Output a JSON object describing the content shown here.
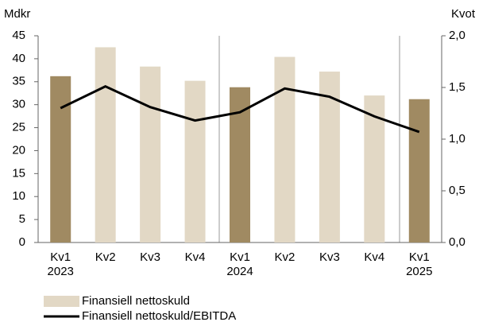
{
  "chart_data": {
    "type": "bar_line",
    "y_label": "Mdkr",
    "y2_label": "Kvot",
    "categories": [
      "Kv1\n2023",
      "Kv2",
      "Kv3",
      "Kv4",
      "Kv1\n2024",
      "Kv2",
      "Kv3",
      "Kv4",
      "Kv1\n2025"
    ],
    "series": [
      {
        "name": "Finansiell nettoskuld",
        "type": "bar",
        "color": "#e2d8c5",
        "colors": [
          "#a08a62",
          "#e2d8c5",
          "#e2d8c5",
          "#e2d8c5",
          "#a08a62",
          "#e2d8c5",
          "#e2d8c5",
          "#e2d8c5",
          "#a08a62"
        ],
        "values": [
          36.2,
          42.5,
          38.3,
          35.2,
          33.8,
          40.4,
          37.2,
          32.0,
          31.2
        ]
      },
      {
        "name": "Finansiell nettoskuld/EBITDA",
        "type": "line",
        "axis": "y2",
        "color": "#000000",
        "values": [
          1.3,
          1.51,
          1.31,
          1.18,
          1.26,
          1.49,
          1.41,
          1.22,
          1.07
        ]
      }
    ],
    "ylim": [
      0,
      45
    ],
    "yticks": [
      0,
      5,
      10,
      15,
      20,
      25,
      30,
      35,
      40,
      45
    ],
    "y2lim": [
      0,
      2
    ],
    "y2ticks": [
      {
        "value": 0,
        "label": "0,0"
      },
      {
        "value": 0.5,
        "label": "0,5"
      },
      {
        "value": 1,
        "label": "1,0"
      },
      {
        "value": 1.5,
        "label": "1,5"
      },
      {
        "value": 2,
        "label": "2,0"
      }
    ],
    "grid": false
  }
}
